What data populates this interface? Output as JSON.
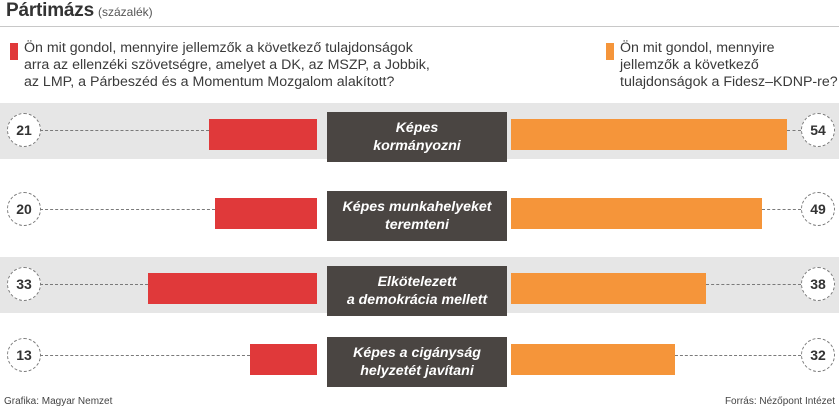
{
  "header": {
    "title": "Pártimázs",
    "subtitle": "(százalék)"
  },
  "legend": {
    "left": {
      "color": "#e0393a",
      "lines": [
        "Ön mit gondol, mennyire jellemzők a következő tulajdonságok",
        "arra az ellenzéki szövetségre, amelyet a DK, az MSZP,  a Jobbik,",
        "az LMP, a Párbeszéd és a Momentum Mozgalom alakított?"
      ]
    },
    "right": {
      "color": "#f5953a",
      "lines": [
        "Ön mit gondol, mennyire",
        "jellemzők a következő",
        "tulajdonságok a Fidesz–KDNP-re?"
      ]
    }
  },
  "chart_data": {
    "type": "bar",
    "orientation": "horizontal-diverging",
    "unit": "százalék",
    "categories": [
      [
        "Képes",
        "kormányozni"
      ],
      [
        "Képes munkahelyeket",
        "teremteni"
      ],
      [
        "Elkötelezett",
        "a demokrácia mellett"
      ],
      [
        "Képes a cigányság",
        "helyzetét javítani"
      ]
    ],
    "series": [
      {
        "color": "#e0393a",
        "side": "left",
        "values": [
          21,
          20,
          33,
          13
        ]
      },
      {
        "color": "#f5953a",
        "side": "right",
        "values": [
          54,
          49,
          38,
          32
        ]
      }
    ],
    "band_colors": [
      "#e6e6e6",
      "#ffffff",
      "#e6e6e6",
      "#ffffff"
    ],
    "label_box_color": "#4a4542",
    "grid": false
  },
  "footer": {
    "credit": "Grafika: Magyar Nemzet",
    "source": "Forrás: Nézőpont Intézet"
  }
}
